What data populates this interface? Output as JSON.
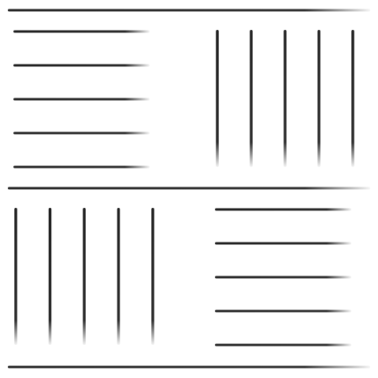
{
  "colors": {
    "background": "#ffffff",
    "stroke": "#1e1e1e"
  },
  "pattern": {
    "style": "hand-drawn crayon strokes",
    "dividers": 3,
    "quadrants": [
      {
        "position": "top-left",
        "orientation": "horizontal",
        "strokes": 5
      },
      {
        "position": "top-right",
        "orientation": "vertical",
        "strokes": 5
      },
      {
        "position": "bottom-left",
        "orientation": "vertical",
        "strokes": 5
      },
      {
        "position": "bottom-right",
        "orientation": "horizontal",
        "strokes": 5
      }
    ]
  }
}
